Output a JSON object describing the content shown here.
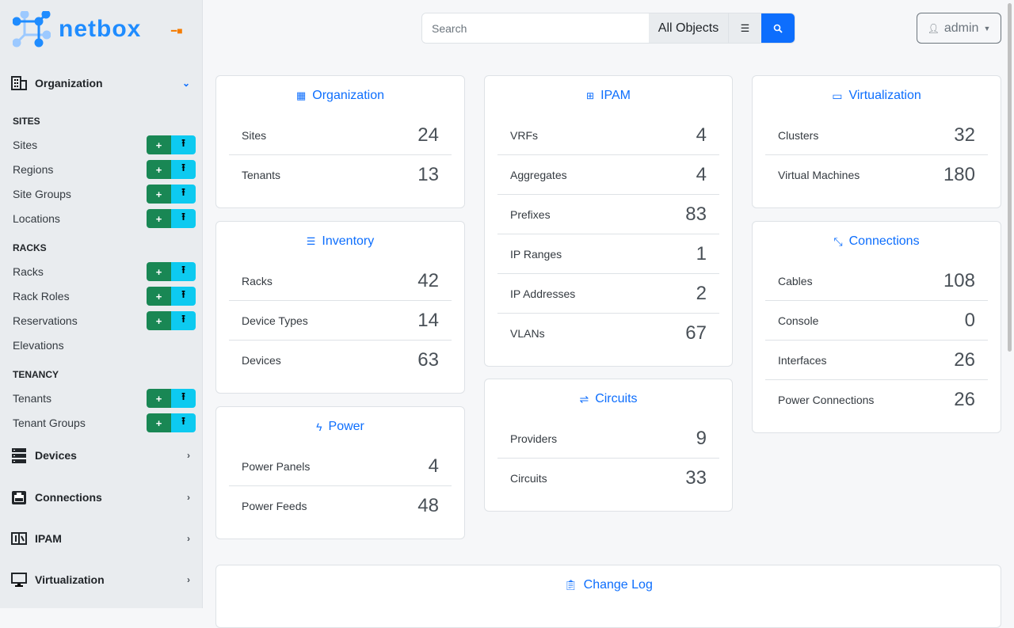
{
  "brand": {
    "name": "netbox",
    "color": "#1f8cff"
  },
  "sidebar": {
    "groups": [
      {
        "label": "Organization",
        "icon": "building-icon"
      },
      {
        "label": "Devices",
        "icon": "server-icon"
      },
      {
        "label": "Connections",
        "icon": "ethernet-icon"
      },
      {
        "label": "IPAM",
        "icon": "ipam-icon"
      },
      {
        "label": "Virtualization",
        "icon": "monitor-icon"
      }
    ],
    "sections": [
      "SITES",
      "RACKS",
      "TENANCY"
    ],
    "items": [
      {
        "label": "Sites"
      },
      {
        "label": "Regions"
      },
      {
        "label": "Site Groups"
      },
      {
        "label": "Locations"
      },
      {
        "label": "Racks"
      },
      {
        "label": "Rack Roles"
      },
      {
        "label": "Reservations"
      },
      {
        "label": "Elevations"
      },
      {
        "label": "Tenants"
      },
      {
        "label": "Tenant Groups"
      }
    ],
    "add_glyph": "+",
    "import_glyph": "⭱"
  },
  "search": {
    "placeholder": "Search",
    "scope": "All Objects"
  },
  "user": {
    "name": "admin"
  },
  "cards": {
    "organization": {
      "title": "Organization",
      "rows": [
        {
          "label": "Sites",
          "value": "24"
        },
        {
          "label": "Tenants",
          "value": "13"
        }
      ]
    },
    "inventory": {
      "title": "Inventory",
      "rows": [
        {
          "label": "Racks",
          "value": "42"
        },
        {
          "label": "Device Types",
          "value": "14"
        },
        {
          "label": "Devices",
          "value": "63"
        }
      ]
    },
    "power": {
      "title": "Power",
      "rows": [
        {
          "label": "Power Panels",
          "value": "4"
        },
        {
          "label": "Power Feeds",
          "value": "48"
        }
      ]
    },
    "ipam": {
      "title": "IPAM",
      "rows": [
        {
          "label": "VRFs",
          "value": "4"
        },
        {
          "label": "Aggregates",
          "value": "4"
        },
        {
          "label": "Prefixes",
          "value": "83"
        },
        {
          "label": "IP Ranges",
          "value": "1"
        },
        {
          "label": "IP Addresses",
          "value": "2"
        },
        {
          "label": "VLANs",
          "value": "67"
        }
      ]
    },
    "circuits": {
      "title": "Circuits",
      "rows": [
        {
          "label": "Providers",
          "value": "9"
        },
        {
          "label": "Circuits",
          "value": "33"
        }
      ]
    },
    "virtualization": {
      "title": "Virtualization",
      "rows": [
        {
          "label": "Clusters",
          "value": "32"
        },
        {
          "label": "Virtual Machines",
          "value": "180"
        }
      ]
    },
    "connections": {
      "title": "Connections",
      "rows": [
        {
          "label": "Cables",
          "value": "108"
        },
        {
          "label": "Console",
          "value": "0"
        },
        {
          "label": "Interfaces",
          "value": "26"
        },
        {
          "label": "Power Connections",
          "value": "26"
        }
      ]
    },
    "changelog": {
      "title": "Change Log"
    }
  }
}
